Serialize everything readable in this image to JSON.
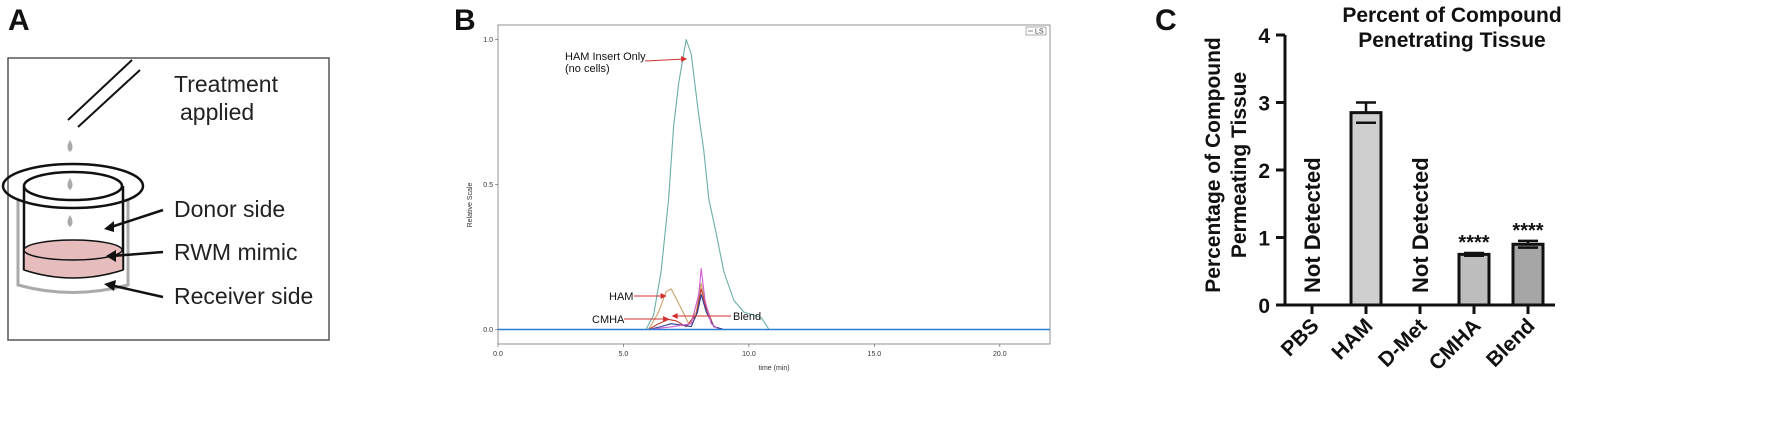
{
  "panels": {
    "a": {
      "label": "A"
    },
    "b": {
      "label": "B"
    },
    "c": {
      "label": "C"
    }
  },
  "diagram": {
    "treatment_line1": "Treatment",
    "treatment_line2": "applied",
    "donor": "Donor side",
    "rwm": "RWM mimic",
    "receiver": "Receiver side",
    "colors": {
      "rwm_fill": "#e6bcbc",
      "outline": "#111111",
      "drop": "#aaaaaa"
    }
  },
  "chart_data": [
    {
      "type": "line",
      "xlabel": "time (min)",
      "ylabel": "Relative Scale",
      "xlim": [
        0,
        22
      ],
      "ylim": [
        -0.05,
        1.05
      ],
      "x_ticks": [
        "0.0",
        "5.0",
        "10.0",
        "15.0",
        "20.0"
      ],
      "y_ticks": [
        "0.0",
        "0.5",
        "1.0"
      ],
      "legend": {
        "entry": "LS",
        "position": "top-right"
      },
      "annotations": [
        {
          "text_line1": "HAM Insert Only",
          "text_line2": "(no cells)",
          "x": 7.3,
          "y": 0.98
        },
        {
          "text": "HAM",
          "x": 6.6,
          "y": 0.11
        },
        {
          "text": "CMHA",
          "x": 6.7,
          "y": 0.035
        },
        {
          "text": "Blend",
          "x": 7.0,
          "y": 0.04
        }
      ],
      "series": [
        {
          "name": "HAM Insert Only (no cells)",
          "color": "#6aaea8",
          "x": [
            0,
            5.9,
            6.2,
            6.5,
            6.8,
            7.0,
            7.2,
            7.5,
            7.7,
            8.0,
            8.2,
            8.4,
            8.7,
            9.0,
            9.4,
            9.8,
            10.2,
            10.5,
            10.8,
            11.0,
            22
          ],
          "y": [
            0,
            0.0,
            0.05,
            0.2,
            0.45,
            0.7,
            0.85,
            1.0,
            0.95,
            0.74,
            0.62,
            0.45,
            0.33,
            0.2,
            0.1,
            0.06,
            0.05,
            0.04,
            0.0,
            0.0,
            0.0
          ]
        },
        {
          "name": "HAM",
          "color": "#c9a26a",
          "x": [
            0,
            6.0,
            6.4,
            6.7,
            6.9,
            7.2,
            7.6,
            7.9,
            8.1,
            8.3,
            8.6,
            9.0,
            22
          ],
          "y": [
            0,
            0.0,
            0.06,
            0.13,
            0.14,
            0.09,
            0.02,
            0.06,
            0.16,
            0.08,
            0.01,
            0.0,
            0.0
          ]
        },
        {
          "name": "CMHA",
          "color": "#c0392b",
          "x": [
            0,
            6.0,
            6.4,
            6.8,
            7.1,
            7.5,
            7.9,
            8.1,
            8.3,
            8.6,
            9.0,
            22
          ],
          "y": [
            0,
            0.0,
            0.02,
            0.035,
            0.03,
            0.01,
            0.05,
            0.14,
            0.07,
            0.01,
            0.0,
            0.0
          ]
        },
        {
          "name": "Blend",
          "color": "#2c3e8f",
          "x": [
            0,
            6.0,
            6.5,
            6.9,
            7.3,
            7.7,
            7.95,
            8.1,
            8.3,
            8.6,
            9.0,
            22
          ],
          "y": [
            0,
            0.0,
            0.01,
            0.02,
            0.015,
            0.01,
            0.06,
            0.12,
            0.06,
            0.01,
            0.0,
            0.0
          ]
        },
        {
          "name": "",
          "color": "#d15cd1",
          "x": [
            0,
            6.0,
            7.0,
            7.7,
            8.0,
            8.1,
            8.25,
            8.5,
            8.8,
            22
          ],
          "y": [
            0,
            0.0,
            0.01,
            0.02,
            0.12,
            0.21,
            0.1,
            0.02,
            0.0,
            0.0
          ]
        },
        {
          "name": "",
          "color": "#2b7fd4",
          "x": [
            0,
            22
          ],
          "y": [
            0,
            0
          ]
        }
      ]
    },
    {
      "type": "bar",
      "title_line1": "Percent of Compound",
      "title_line2": "Penetrating Tissue",
      "ylabel_line1": "Percentage of Compound",
      "ylabel_line2": "Permeating Tissue",
      "ylim": [
        0,
        4
      ],
      "y_ticks": [
        "0",
        "1",
        "2",
        "3",
        "4"
      ],
      "categories": [
        "PBS",
        "HAM",
        "D-Met",
        "CMHA",
        "Blend"
      ],
      "values": [
        null,
        2.85,
        null,
        0.75,
        0.9
      ],
      "errors": [
        null,
        0.15,
        null,
        0.02,
        0.05
      ],
      "bar_colors": [
        "#cfcfcf",
        "#cfcfcf",
        "#cfcfcf",
        "#bdbdbd",
        "#a6a6a6"
      ],
      "bar_labels": [
        "Not Detected",
        "",
        "Not Detected",
        "****",
        "****"
      ]
    }
  ]
}
